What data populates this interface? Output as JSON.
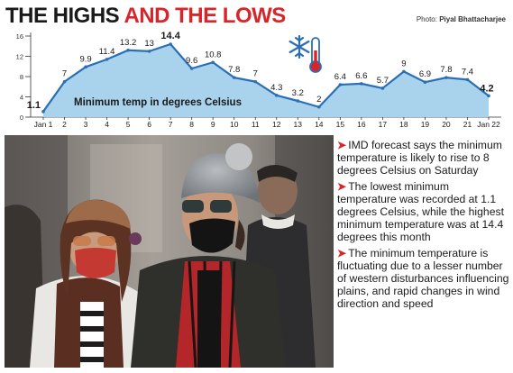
{
  "headline": {
    "part1": "THE HIGHS ",
    "part2": "AND THE LOWS"
  },
  "credit": {
    "prefix": "Photo: ",
    "name": "Piyal Bhattacharjee"
  },
  "colors": {
    "accent": "#d7262a",
    "line": "#2a6fb5",
    "area": "#a9d3ec",
    "text": "#1a1a1a"
  },
  "icon": "thermometer-snowflake-icon",
  "chart_data": {
    "type": "area",
    "title": "Minimum temp in degrees Celsius",
    "x": [
      "Jan 1",
      "2",
      "3",
      "4",
      "5",
      "6",
      "7",
      "8",
      "9",
      "10",
      "11",
      "12",
      "13",
      "14",
      "15",
      "16",
      "17",
      "18",
      "19",
      "20",
      "21",
      "Jan 22"
    ],
    "values": [
      1.1,
      7,
      9.9,
      11.4,
      13.2,
      13,
      14.4,
      9.6,
      10.8,
      7.8,
      7,
      4.3,
      3.2,
      2,
      6.4,
      6.6,
      5.7,
      9,
      6.9,
      7.8,
      7.4,
      4.2
    ],
    "data_labels": [
      "1.1",
      "7",
      "9.9",
      "11.4",
      "13.2",
      "13",
      "14.4",
      "9.6",
      "10.8",
      "7.8",
      "7",
      "4.3",
      "3.2",
      "2",
      "6.4",
      "6.6",
      "5.7",
      "9",
      "6.9",
      "7.8",
      "7.4",
      "4.2"
    ],
    "yticks": [
      "0",
      "4",
      "8",
      "12",
      "16"
    ],
    "ylim": [
      0,
      16
    ],
    "grid": false
  },
  "bullets": [
    "IMD forecast says the minimum temperature is likely to rise to 8 degrees Celsius on Saturday",
    "The lowest minimum temperature was recorded at 1.1 degrees Celsius, while the highest minimum temperature was at 14.4 degrees this month",
    "The minimum temperature is fluctuating due to a lesser number of western disturbances influencing plains, and rapid changes in wind direction and speed"
  ],
  "bullet_marker": "➤"
}
